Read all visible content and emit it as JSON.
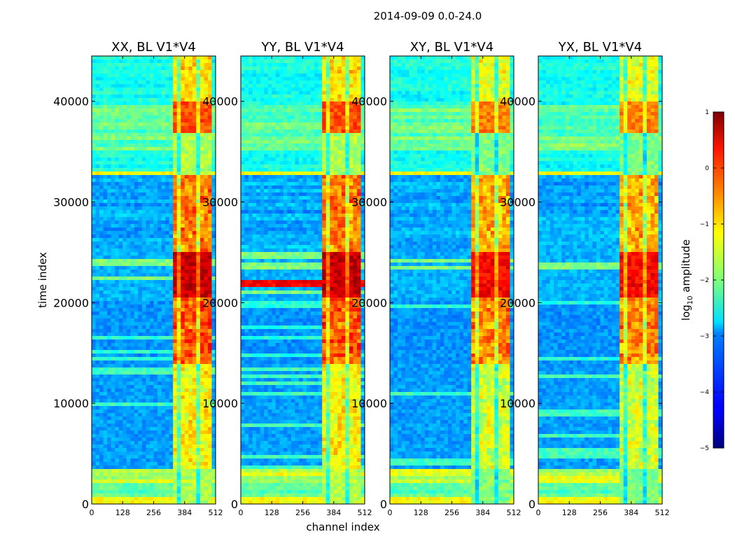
{
  "chart_data": {
    "type": "heatmap",
    "suptitle": "2014-09-09 0.0-24.0",
    "xlabel": "channel index",
    "ylabel": "time index",
    "xlim": [
      0,
      512
    ],
    "ylim": [
      0,
      44500
    ],
    "xticks": [
      "0",
      "128",
      "256",
      "384",
      "512"
    ],
    "yticks": [
      "0",
      "10000",
      "20000",
      "30000",
      "40000"
    ],
    "colormap": "jet",
    "panels": [
      {
        "title": "XX, BL V1*V4",
        "pol": "XX"
      },
      {
        "title": "YY, BL V1*V4",
        "pol": "YY"
      },
      {
        "title": "XY, BL V1*V4",
        "pol": "XY"
      },
      {
        "title": "YX, BL V1*V4",
        "pol": "YX"
      }
    ],
    "colorbar": {
      "label": "log10 amplitude",
      "label_base": "log",
      "label_sub": "10",
      "label_rest": " amplitude",
      "range": [
        -5,
        1
      ],
      "ticks": [
        "1",
        "0",
        "−1",
        "−2",
        "−3",
        "−4",
        "−5"
      ],
      "tick_values": [
        1,
        0,
        -1,
        -2,
        -3,
        -4,
        -5
      ]
    },
    "features": {
      "rfi_channel_band": [
        330,
        490
      ],
      "strong_time_range": [
        20500,
        25000
      ],
      "bright_time_bands": [
        [
          0,
          600
        ],
        [
          2000,
          3500
        ],
        [
          32600,
          33000
        ],
        [
          35000,
          39000
        ]
      ]
    }
  }
}
